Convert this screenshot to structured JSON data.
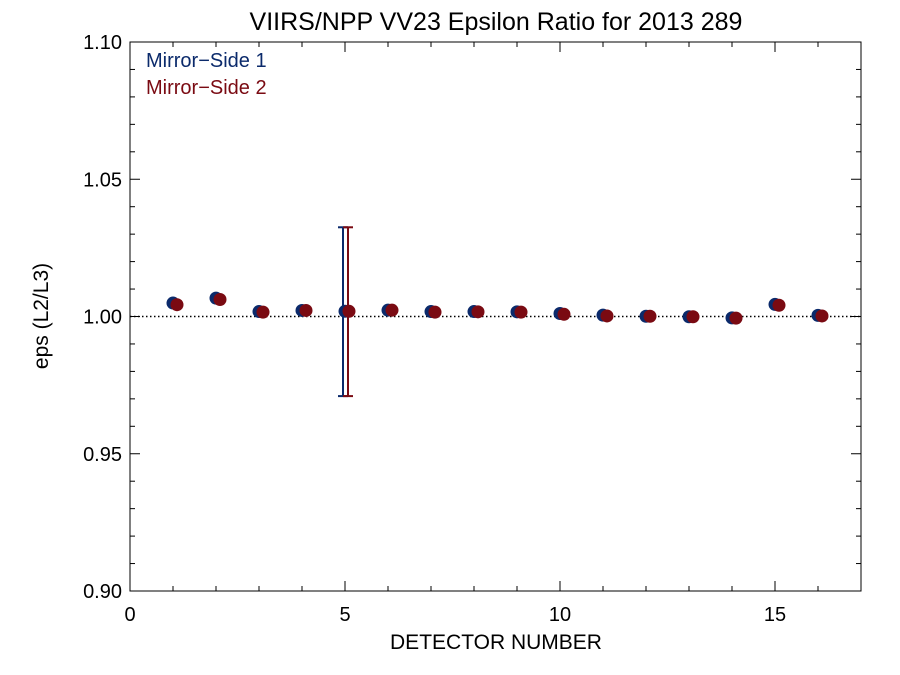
{
  "chart_data": {
    "type": "scatter",
    "title": "VIIRS/NPP VV23 Epsilon Ratio for 2013 289",
    "xlabel": "DETECTOR NUMBER",
    "ylabel": "eps (L2/L3)",
    "xlim": [
      0,
      17
    ],
    "ylim": [
      0.9,
      1.1
    ],
    "x_ticks": [
      0,
      5,
      10,
      15
    ],
    "x_tick_labels": [
      "0",
      "5",
      "10",
      "15"
    ],
    "y_ticks": [
      0.9,
      0.95,
      1.0,
      1.05,
      1.1
    ],
    "y_tick_labels": [
      "0.90",
      "0.95",
      "1.00",
      "1.05",
      "1.10"
    ],
    "reference_line": {
      "y": 1.0,
      "style": "dotted"
    },
    "legend_position": "top-left",
    "series": [
      {
        "name": "Mirror−Side 1",
        "color": "#0b2a6b",
        "x": [
          1,
          2,
          3,
          4,
          5,
          6,
          7,
          8,
          9,
          10,
          11,
          12,
          13,
          14,
          15,
          16
        ],
        "values": [
          1.0049,
          1.0067,
          1.0018,
          1.0022,
          1.0019,
          1.0023,
          1.0018,
          1.0018,
          1.0017,
          1.0011,
          1.0005,
          1.0001,
          0.9999,
          0.9995,
          1.0044,
          1.0004
        ],
        "error_bar": {
          "x": 5,
          "low": 0.971,
          "high": 1.0325
        }
      },
      {
        "name": "Mirror−Side 2",
        "color": "#7a0a12",
        "x": [
          1,
          2,
          3,
          4,
          5,
          6,
          7,
          8,
          9,
          10,
          11,
          12,
          13,
          14,
          15,
          16
        ],
        "values": [
          1.0043,
          1.0062,
          1.0016,
          1.0022,
          1.0019,
          1.0023,
          1.0016,
          1.0017,
          1.0016,
          1.0008,
          1.0002,
          1.0001,
          0.9999,
          0.9994,
          1.0041,
          1.0002
        ],
        "error_bar": {
          "x": 5,
          "low": 0.971,
          "high": 1.0325
        }
      }
    ]
  }
}
